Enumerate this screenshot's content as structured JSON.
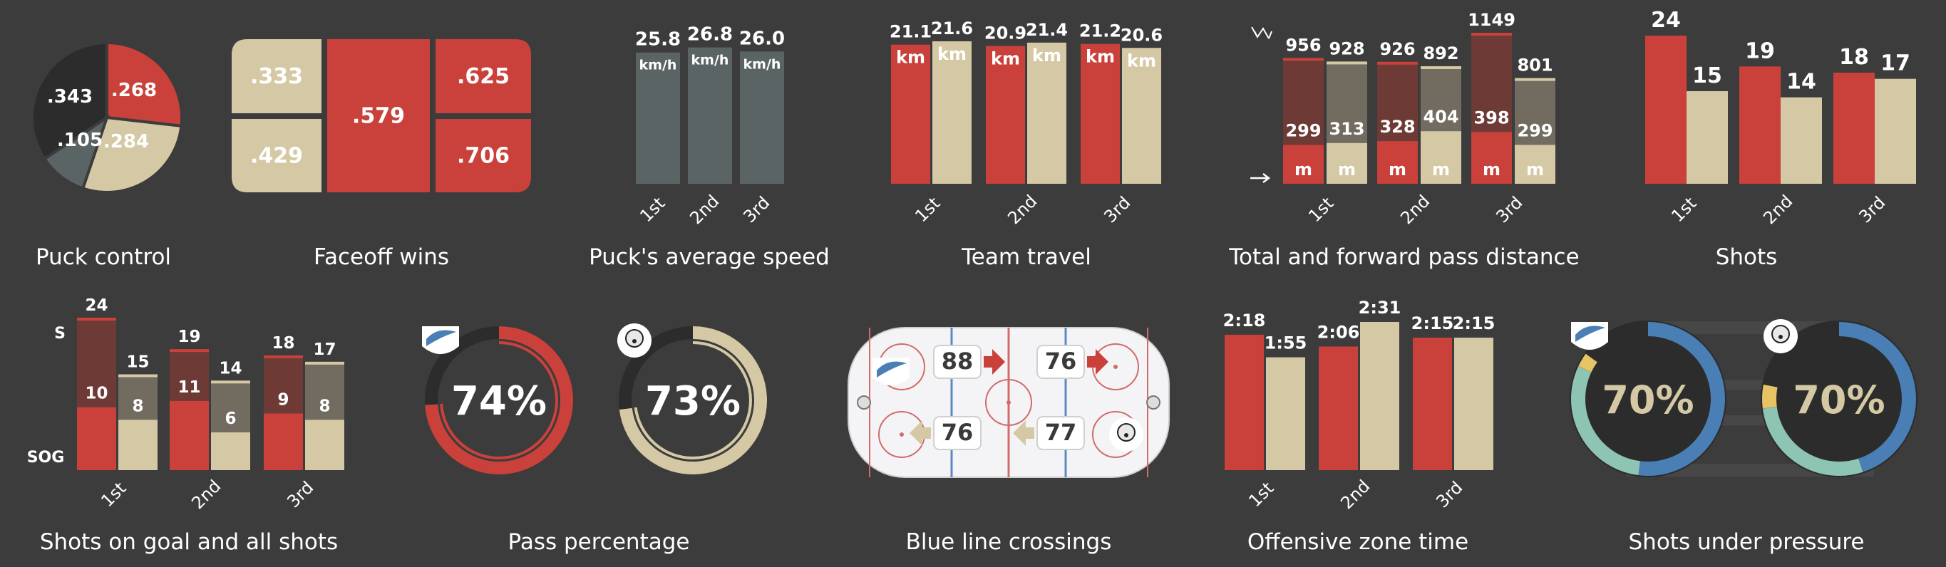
{
  "colors": {
    "background": "#3c3c3c",
    "red": "#c9413a",
    "beige": "#d5c9a5",
    "dark_red": "#6e3a36",
    "dark_beige": "#716b60",
    "gray": "#5b6465",
    "dark": "#2c2c2c",
    "blue": "#4a7fb5",
    "teal": "#8ec4b4",
    "yellow": "#e6c464",
    "rink": "#f4f4f7"
  },
  "titles": {
    "puck_control": "Puck control",
    "faceoff": "Faceoff wins",
    "puck_speed": "Puck's average speed",
    "team_travel": "Team travel",
    "pass_distance": "Total and forward pass distance",
    "shots": "Shots",
    "sog": "Shots on goal and all shots",
    "pass_pct": "Pass percentage",
    "blue_line": "Blue line crossings",
    "oz_time": "Offensive zone time",
    "pressure": "Shots under pressure"
  },
  "chart_data": [
    {
      "id": "puck_control",
      "type": "pie",
      "title": "Puck control",
      "slices": [
        {
          "value": 0.268,
          "label": ".268",
          "color": "#c9413a"
        },
        {
          "value": 0.284,
          "label": ".284",
          "color": "#d5c9a5"
        },
        {
          "value": 0.105,
          "label": ".105",
          "color": "#5b6465"
        },
        {
          "value": 0.343,
          "label": ".343",
          "color": "#2c2c2c"
        }
      ]
    },
    {
      "id": "faceoff",
      "type": "treemap",
      "title": "Faceoff wins",
      "cells": [
        {
          "label": ".333",
          "value": 0.333,
          "color": "#d5c9a5"
        },
        {
          "label": ".429",
          "value": 0.429,
          "color": "#d5c9a5"
        },
        {
          "label": ".579",
          "value": 0.579,
          "color": "#c9413a"
        },
        {
          "label": ".625",
          "value": 0.625,
          "color": "#c9413a"
        },
        {
          "label": ".706",
          "value": 0.706,
          "color": "#c9413a"
        }
      ]
    },
    {
      "id": "puck_speed",
      "type": "bar",
      "title": "Puck's average speed",
      "categories": [
        "1st",
        "2nd",
        "3rd"
      ],
      "values": [
        25.8,
        26.8,
        26.0
      ],
      "value_labels": [
        "25.8",
        "26.8",
        "26.0"
      ],
      "unit": "km/h",
      "ylim": [
        0,
        28
      ]
    },
    {
      "id": "team_travel",
      "type": "bar",
      "title": "Team travel",
      "categories": [
        "1st",
        "2nd",
        "3rd"
      ],
      "unit": "km",
      "ylim": [
        0,
        22.5
      ],
      "series": [
        {
          "values": [
            21.1,
            20.9,
            21.2
          ],
          "labels": [
            "21.1",
            "20.9",
            "21.2"
          ],
          "color": "#c9413a"
        },
        {
          "values": [
            21.6,
            21.4,
            20.6
          ],
          "labels": [
            "21.6",
            "21.4",
            "20.6"
          ],
          "color": "#d5c9a5"
        }
      ]
    },
    {
      "id": "pass_distance",
      "type": "bar",
      "title": "Total and forward pass distance",
      "categories": [
        "1st",
        "2nd",
        "3rd"
      ],
      "unit": "m",
      "ylim": [
        0,
        1230
      ],
      "series": [
        {
          "total": [
            956,
            926,
            1149
          ],
          "forward": [
            299,
            328,
            398
          ],
          "color": "#c9413a"
        },
        {
          "total": [
            928,
            892,
            801
          ],
          "forward": [
            313,
            404,
            299
          ],
          "color": "#d5c9a5"
        }
      ]
    },
    {
      "id": "shots",
      "type": "bar",
      "title": "Shots",
      "categories": [
        "1st",
        "2nd",
        "3rd"
      ],
      "ylim": [
        0,
        24
      ],
      "series": [
        {
          "values": [
            24,
            19,
            18
          ],
          "color": "#c9413a"
        },
        {
          "values": [
            15,
            14,
            17
          ],
          "color": "#d5c9a5"
        }
      ]
    },
    {
      "id": "sog",
      "type": "bar",
      "title": "Shots on goal and all shots",
      "categories": [
        "1st",
        "2nd",
        "3rd"
      ],
      "axis_labels": {
        "top": "S",
        "bottom": "SOG"
      },
      "ylim": [
        0,
        24.5
      ],
      "series": [
        {
          "shots": [
            24,
            19,
            18
          ],
          "sog": [
            10,
            11,
            9
          ],
          "color": "#c9413a"
        },
        {
          "shots": [
            15,
            14,
            17
          ],
          "sog": [
            8,
            6,
            8
          ],
          "color": "#d5c9a5"
        }
      ]
    },
    {
      "id": "pass_pct",
      "type": "donut",
      "title": "Pass percentage",
      "items": [
        {
          "value": 74,
          "label": "74%",
          "color": "#c9413a"
        },
        {
          "value": 73,
          "label": "73%",
          "color": "#d5c9a5"
        }
      ]
    },
    {
      "id": "blue_line",
      "type": "diagram",
      "title": "Blue line crossings",
      "values": [
        {
          "label": "88",
          "direction": "right",
          "color": "#c9413a"
        },
        {
          "label": "76",
          "direction": "right",
          "color": "#c9413a"
        },
        {
          "label": "76",
          "direction": "left",
          "color": "#d5c9a5"
        },
        {
          "label": "77",
          "direction": "left",
          "color": "#d5c9a5"
        }
      ]
    },
    {
      "id": "oz_time",
      "type": "bar",
      "title": "Offensive zone time",
      "categories": [
        "1st",
        "2nd",
        "3rd"
      ],
      "ylim": [
        0,
        151
      ],
      "series": [
        {
          "values": [
            138,
            126,
            135
          ],
          "labels": [
            "2:18",
            "2:06",
            "2:15"
          ],
          "color": "#c9413a"
        },
        {
          "values": [
            115,
            151,
            135
          ],
          "labels": [
            "1:55",
            "2:31",
            "2:15"
          ],
          "color": "#d5c9a5"
        }
      ]
    },
    {
      "id": "pressure",
      "type": "donut",
      "title": "Shots under pressure",
      "items": [
        {
          "label": "70%",
          "segments": [
            {
              "value": 0.52,
              "color": "#4a7fb5"
            },
            {
              "value": 0.3,
              "color": "#8ec4b4"
            },
            {
              "value": 0.03,
              "color": "#e6c464"
            },
            {
              "value": 0.15,
              "color": "#2c2c2c"
            }
          ]
        },
        {
          "label": "70%",
          "segments": [
            {
              "value": 0.45,
              "color": "#4a7fb5"
            },
            {
              "value": 0.28,
              "color": "#8ec4b4"
            },
            {
              "value": 0.05,
              "color": "#e6c464"
            },
            {
              "value": 0.22,
              "color": "#2c2c2c"
            }
          ]
        }
      ]
    }
  ]
}
